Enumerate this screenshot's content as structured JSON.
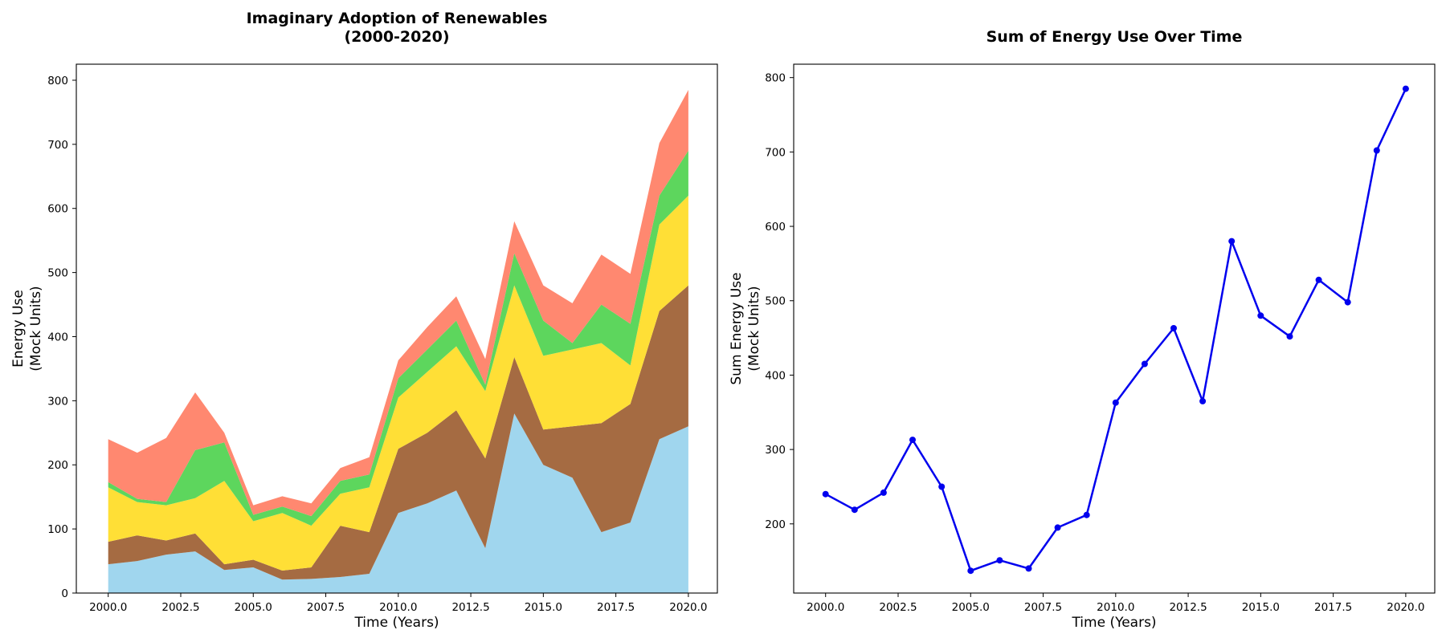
{
  "chart_data": [
    {
      "type": "area",
      "stacked": true,
      "title_lines": [
        "Imaginary Adoption of Renewables",
        "(2000-2020)"
      ],
      "xlabel": "Time (Years)",
      "ylabel_lines": [
        "Energy Use",
        "(Mock Units)"
      ],
      "x": [
        2000,
        2001,
        2002,
        2003,
        2004,
        2005,
        2006,
        2007,
        2008,
        2009,
        2010,
        2011,
        2012,
        2013,
        2014,
        2015,
        2016,
        2017,
        2018,
        2019,
        2020
      ],
      "series": [
        {
          "color": "#a0d6ee",
          "values": [
            45,
            50,
            60,
            65,
            36,
            40,
            21,
            22,
            25,
            30,
            125,
            140,
            160,
            70,
            280,
            200,
            180,
            95,
            110,
            240,
            260
          ]
        },
        {
          "color": "#a56b42",
          "values": [
            35,
            40,
            22,
            28,
            9,
            12,
            14,
            18,
            80,
            65,
            100,
            110,
            125,
            140,
            88,
            55,
            80,
            170,
            185,
            200,
            220
          ]
        },
        {
          "color": "#ffdf36",
          "values": [
            85,
            52,
            55,
            55,
            130,
            60,
            90,
            65,
            50,
            70,
            80,
            95,
            100,
            105,
            112,
            115,
            120,
            125,
            60,
            135,
            140
          ]
        },
        {
          "color": "#5dd65d",
          "values": [
            8,
            5,
            5,
            75,
            60,
            10,
            10,
            15,
            20,
            20,
            30,
            35,
            40,
            10,
            50,
            55,
            10,
            60,
            65,
            45,
            70
          ]
        },
        {
          "color": "#ff8870",
          "values": [
            67,
            72,
            100,
            90,
            15,
            15,
            16,
            20,
            20,
            27,
            28,
            35,
            38,
            40,
            50,
            55,
            62,
            78,
            78,
            82,
            95
          ]
        }
      ],
      "xlim": [
        1998.9,
        2021.0
      ],
      "ylim": [
        0,
        825
      ],
      "xticks": [
        "2000.0",
        "2002.5",
        "2005.0",
        "2007.5",
        "2010.0",
        "2012.5",
        "2015.0",
        "2017.5",
        "2020.0"
      ],
      "yticks": [
        "0",
        "100",
        "200",
        "300",
        "400",
        "500",
        "600",
        "700",
        "800"
      ],
      "grid": false,
      "legend": "none"
    },
    {
      "type": "line",
      "title_lines": [
        "Sum of Energy Use Over Time"
      ],
      "xlabel": "Time (Years)",
      "ylabel_lines": [
        "Sum Energy Use",
        "(Mock Units)"
      ],
      "x": [
        2000,
        2001,
        2002,
        2003,
        2004,
        2005,
        2006,
        2007,
        2008,
        2009,
        2010,
        2011,
        2012,
        2013,
        2014,
        2015,
        2016,
        2017,
        2018,
        2019,
        2020
      ],
      "series": [
        {
          "color": "#0000ee",
          "values": [
            240,
            219,
            242,
            313,
            250,
            137,
            151,
            140,
            195,
            212,
            363,
            415,
            463,
            365,
            580,
            480,
            452,
            528,
            498,
            702,
            785
          ]
        }
      ],
      "xlim": [
        1998.9,
        2021.0
      ],
      "ylim": [
        107,
        818
      ],
      "xticks": [
        "2000.0",
        "2002.5",
        "2005.0",
        "2007.5",
        "2010.0",
        "2012.5",
        "2015.0",
        "2017.5",
        "2020.0"
      ],
      "yticks": [
        "200",
        "300",
        "400",
        "500",
        "600",
        "700",
        "800"
      ],
      "grid": false,
      "legend": "none"
    }
  ]
}
